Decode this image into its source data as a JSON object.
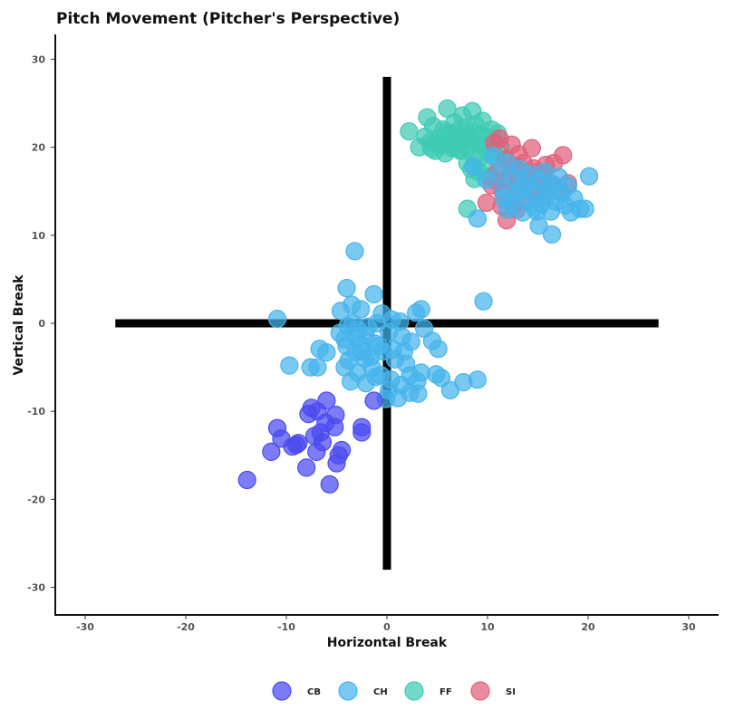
{
  "chart_data": {
    "type": "scatter",
    "title": "Pitch Movement (Pitcher's Perspective)",
    "xlabel": "Horizontal Break",
    "ylabel": "Vertical Break",
    "xlim": [
      -30,
      30
    ],
    "ylim": [
      -30,
      30
    ],
    "xticks": [
      -30,
      -20,
      -10,
      0,
      10,
      20,
      30
    ],
    "yticks": [
      -30,
      -20,
      -10,
      0,
      10,
      20,
      30
    ],
    "grid": false,
    "legend_position": "bottom",
    "reference_lines": {
      "horizontal": {
        "y": 0,
        "x_range": [
          -27,
          27
        ]
      },
      "vertical": {
        "x": 0,
        "y_range": [
          -28,
          28
        ]
      }
    },
    "series": [
      {
        "name": "FF",
        "color": "#3ecbb4",
        "points": [
          [
            2.2,
            21.8
          ],
          [
            3.2,
            20.0
          ],
          [
            3.8,
            21.2
          ],
          [
            4.0,
            23.4
          ],
          [
            4.3,
            20.6
          ],
          [
            4.6,
            22.4
          ],
          [
            4.8,
            19.6
          ],
          [
            5.0,
            21.0
          ],
          [
            5.3,
            20.2
          ],
          [
            5.6,
            22.0
          ],
          [
            5.8,
            19.3
          ],
          [
            6.0,
            24.4
          ],
          [
            6.1,
            20.8
          ],
          [
            6.3,
            21.6
          ],
          [
            6.5,
            19.9
          ],
          [
            6.7,
            22.8
          ],
          [
            6.9,
            20.4
          ],
          [
            7.1,
            21.2
          ],
          [
            7.3,
            19.6
          ],
          [
            7.5,
            23.6
          ],
          [
            7.6,
            20.9
          ],
          [
            7.8,
            22.2
          ],
          [
            8.0,
            20.0
          ],
          [
            8.2,
            21.5
          ],
          [
            8.4,
            17.5
          ],
          [
            8.5,
            24.1
          ],
          [
            8.6,
            19.1
          ],
          [
            8.8,
            22.6
          ],
          [
            9.0,
            20.5
          ],
          [
            9.2,
            18.8
          ],
          [
            9.3,
            21.4
          ],
          [
            9.5,
            23.0
          ],
          [
            9.6,
            20.2
          ],
          [
            9.8,
            17.8
          ],
          [
            10.0,
            21.1
          ],
          [
            10.2,
            19.4
          ],
          [
            10.4,
            22.0
          ],
          [
            10.6,
            20.6
          ],
          [
            11.0,
            21.6
          ],
          [
            11.3,
            19.9
          ],
          [
            11.6,
            18.6
          ],
          [
            8.0,
            18.2
          ],
          [
            7.0,
            19.8
          ],
          [
            5.5,
            20.4
          ],
          [
            9.8,
            20.0
          ],
          [
            6.6,
            20.5
          ],
          [
            8.7,
            16.4
          ],
          [
            10.9,
            19.0
          ],
          [
            8.2,
            20.8
          ],
          [
            7.2,
            22.0
          ],
          [
            4.4,
            19.9
          ],
          [
            5.9,
            21.7
          ],
          [
            8.0,
            13.0
          ],
          [
            9.1,
            17.2
          ],
          [
            10.3,
            16.7
          ]
        ]
      },
      {
        "name": "SI",
        "color": "#e0607a",
        "points": [
          [
            9.9,
            13.7
          ],
          [
            10.4,
            15.7
          ],
          [
            10.7,
            20.5
          ],
          [
            11.0,
            17.2
          ],
          [
            11.2,
            21.0
          ],
          [
            11.5,
            14.9
          ],
          [
            11.8,
            18.6
          ],
          [
            11.9,
            11.7
          ],
          [
            12.1,
            16.3
          ],
          [
            12.4,
            20.3
          ],
          [
            12.6,
            13.4
          ],
          [
            12.8,
            17.8
          ],
          [
            13.1,
            19.2
          ],
          [
            13.3,
            15.1
          ],
          [
            13.6,
            18.2
          ],
          [
            13.9,
            13.9
          ],
          [
            14.1,
            16.6
          ],
          [
            14.4,
            19.9
          ],
          [
            14.7,
            15.4
          ],
          [
            15.0,
            17.2
          ],
          [
            15.4,
            14.3
          ],
          [
            15.8,
            18.0
          ],
          [
            16.2,
            16.0
          ],
          [
            16.6,
            18.2
          ],
          [
            17.0,
            15.1
          ],
          [
            17.5,
            19.1
          ],
          [
            18.0,
            15.9
          ],
          [
            12.3,
            17.5
          ],
          [
            13.0,
            16.4
          ],
          [
            10.9,
            16.2
          ],
          [
            14.6,
            17.6
          ],
          [
            11.4,
            13.3
          ],
          [
            12.9,
            12.9
          ],
          [
            15.6,
            16.4
          ]
        ]
      },
      {
        "name": "CH",
        "color": "#45b4ec",
        "points": [
          [
            11.2,
            17.0
          ],
          [
            11.6,
            15.2
          ],
          [
            12.0,
            18.2
          ],
          [
            12.3,
            13.6
          ],
          [
            12.6,
            16.6
          ],
          [
            12.9,
            14.6
          ],
          [
            13.2,
            17.5
          ],
          [
            13.5,
            12.6
          ],
          [
            13.8,
            15.7
          ],
          [
            14.0,
            13.9
          ],
          [
            14.3,
            16.9
          ],
          [
            14.6,
            14.9
          ],
          [
            14.9,
            12.7
          ],
          [
            15.1,
            16.2
          ],
          [
            15.4,
            13.6
          ],
          [
            15.7,
            17.2
          ],
          [
            16.0,
            14.5
          ],
          [
            16.3,
            12.7
          ],
          [
            16.5,
            15.8
          ],
          [
            16.8,
            13.8
          ],
          [
            17.1,
            16.6
          ],
          [
            17.4,
            14.8
          ],
          [
            17.7,
            13.4
          ],
          [
            18.0,
            15.6
          ],
          [
            18.3,
            12.6
          ],
          [
            18.6,
            14.2
          ],
          [
            19.2,
            13.0
          ],
          [
            19.7,
            13.0
          ],
          [
            20.1,
            16.7
          ],
          [
            9.0,
            11.9
          ],
          [
            15.1,
            11.1
          ],
          [
            16.4,
            10.1
          ],
          [
            8.6,
            17.8
          ],
          [
            9.9,
            16.3
          ],
          [
            11.6,
            14.2
          ],
          [
            12.0,
            12.9
          ],
          [
            13.3,
            15.2
          ],
          [
            14.7,
            13.1
          ],
          [
            15.9,
            15.1
          ],
          [
            10.6,
            19.0
          ],
          [
            9.6,
            2.5
          ],
          [
            -10.9,
            0.5
          ],
          [
            -3.2,
            8.2
          ],
          [
            -4.0,
            4.0
          ],
          [
            -1.3,
            3.3
          ],
          [
            -3.5,
            2.1
          ],
          [
            -4.6,
            1.4
          ],
          [
            -2.6,
            1.6
          ],
          [
            -0.5,
            1.1
          ],
          [
            0.5,
            0.4
          ],
          [
            1.3,
            0.2
          ],
          [
            3.4,
            1.6
          ],
          [
            2.9,
            1.2
          ],
          [
            3.7,
            -0.6
          ],
          [
            4.5,
            -2.0
          ],
          [
            5.1,
            -2.9
          ],
          [
            2.4,
            -2.1
          ],
          [
            1.7,
            -3.2
          ],
          [
            0.8,
            -4.1
          ],
          [
            -0.4,
            -3.2
          ],
          [
            -1.2,
            -2.3
          ],
          [
            -2.1,
            -1.4
          ],
          [
            -2.9,
            -0.7
          ],
          [
            -3.9,
            -0.3
          ],
          [
            -4.7,
            -1.1
          ],
          [
            -4.0,
            -2.6
          ],
          [
            -3.1,
            -3.3
          ],
          [
            -2.2,
            -4.0
          ],
          [
            -1.5,
            -5.0
          ],
          [
            -0.6,
            -5.9
          ],
          [
            0.4,
            -6.4
          ],
          [
            1.4,
            -7.0
          ],
          [
            2.3,
            -5.9
          ],
          [
            3.0,
            -6.6
          ],
          [
            3.4,
            -5.6
          ],
          [
            4.9,
            -5.8
          ],
          [
            5.4,
            -6.2
          ],
          [
            6.3,
            -7.6
          ],
          [
            7.6,
            -6.7
          ],
          [
            9.0,
            -6.4
          ],
          [
            -6.7,
            -2.9
          ],
          [
            -6.0,
            -3.3
          ],
          [
            -7.6,
            -5.0
          ],
          [
            -9.7,
            -4.8
          ],
          [
            -6.9,
            -5.0
          ],
          [
            -4.2,
            -5.0
          ],
          [
            -3.6,
            -6.6
          ],
          [
            -2.1,
            -6.8
          ],
          [
            -1.1,
            -6.1
          ],
          [
            0.2,
            -7.6
          ],
          [
            1.1,
            -8.5
          ],
          [
            2.3,
            -7.9
          ],
          [
            3.1,
            -8.0
          ],
          [
            -0.1,
            -8.6
          ],
          [
            -1.6,
            -3.8
          ],
          [
            -2.6,
            -2.4
          ],
          [
            -3.8,
            -4.2
          ],
          [
            -2.9,
            -5.6
          ],
          [
            -0.8,
            -2.6
          ],
          [
            -1.9,
            -0.4
          ],
          [
            0.6,
            -3.0
          ],
          [
            1.5,
            -1.5
          ],
          [
            -3.4,
            0.0
          ],
          [
            -4.2,
            -1.8
          ],
          [
            -1.0,
            0.0
          ],
          [
            0.2,
            -1.0
          ],
          [
            -2.4,
            -3.2
          ],
          [
            1.9,
            -4.6
          ],
          [
            -3.0,
            -1.6
          ]
        ]
      },
      {
        "name": "CB",
        "color": "#4a4af0",
        "points": [
          [
            -13.9,
            -17.8
          ],
          [
            -11.5,
            -14.6
          ],
          [
            -10.9,
            -11.9
          ],
          [
            -10.5,
            -13.1
          ],
          [
            -9.4,
            -14.0
          ],
          [
            -8.8,
            -13.6
          ],
          [
            -8.0,
            -16.4
          ],
          [
            -7.8,
            -10.3
          ],
          [
            -7.5,
            -9.6
          ],
          [
            -7.2,
            -12.8
          ],
          [
            -7.0,
            -14.6
          ],
          [
            -6.9,
            -10.0
          ],
          [
            -6.6,
            -12.4
          ],
          [
            -6.4,
            -13.5
          ],
          [
            -6.0,
            -8.8
          ],
          [
            -5.7,
            -18.3
          ],
          [
            -5.2,
            -11.8
          ],
          [
            -5.1,
            -10.4
          ],
          [
            -5.0,
            -15.9
          ],
          [
            -4.8,
            -15.0
          ],
          [
            -4.5,
            -14.4
          ],
          [
            -2.5,
            -11.8
          ],
          [
            -2.5,
            -12.4
          ],
          [
            -1.3,
            -8.8
          ],
          [
            -9.0,
            -13.8
          ],
          [
            -6.1,
            -11.3
          ]
        ]
      }
    ]
  }
}
